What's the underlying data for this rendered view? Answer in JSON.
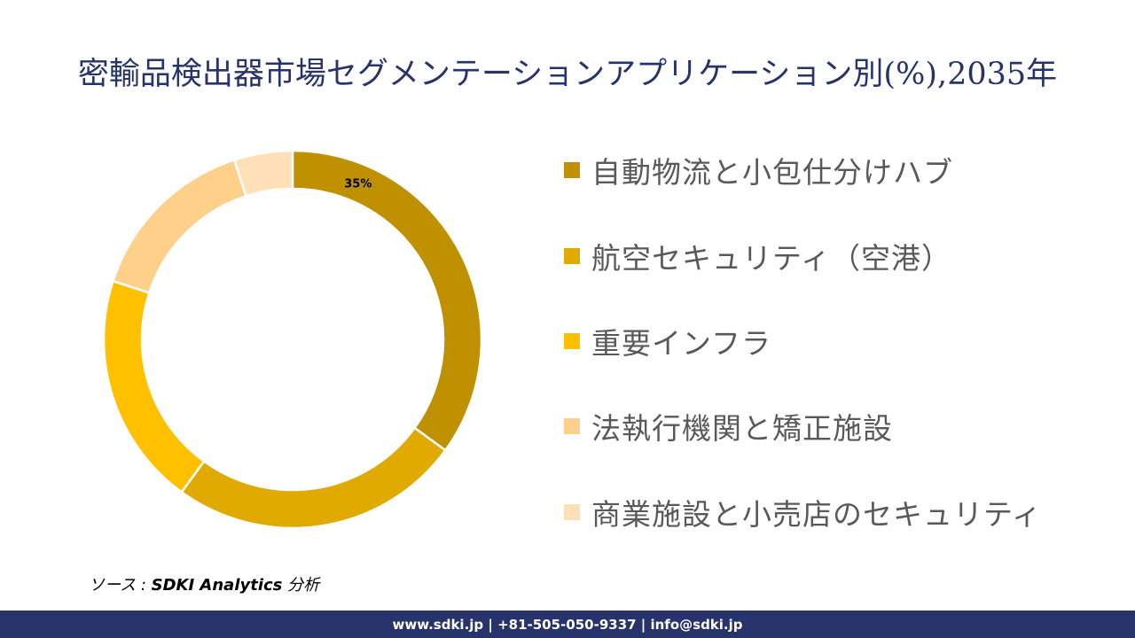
{
  "title": "密輸品検出器市場セグメンテーションアプリケーション別(%),2035年",
  "chart_data": {
    "type": "pie",
    "subtype": "donut",
    "title": "密輸品検出器市場セグメンテーションアプリケーション別(%),2035年",
    "categories": [
      "自動物流と小包仕分けハブ",
      "航空セキュリティ（空港）",
      "重要インフラ",
      "法執行機関と矯正施設",
      "商業施設と小売店のセキュリティ"
    ],
    "values": [
      35,
      25,
      20,
      15,
      5
    ],
    "colors": [
      "#BF9000",
      "#E0AA00",
      "#FFC000",
      "#FFD08A",
      "#FFE0B8"
    ],
    "data_labels": [
      "35%",
      "",
      "",
      "",
      ""
    ],
    "start_angle": 0,
    "direction": "clockwise",
    "legend_position": "right"
  },
  "legend": {
    "items": [
      {
        "label": "自動物流と小包仕分けハブ",
        "color": "#BF9000"
      },
      {
        "label": "航空セキュリティ（空港）",
        "color": "#E0AA00"
      },
      {
        "label": "重要インフラ",
        "color": "#FFC000"
      },
      {
        "label": "法執行機関と矯正施設",
        "color": "#FFD08A"
      },
      {
        "label": "商業施設と小売店のセキュリティ",
        "color": "#FFE0B8"
      }
    ]
  },
  "source": {
    "prefix": "ソース : ",
    "name": "SDKI Analytics",
    "suffix": " 分析"
  },
  "footer": {
    "text": "www.sdki.jp | +81-505-050-9337 | info@sdki.jp"
  }
}
